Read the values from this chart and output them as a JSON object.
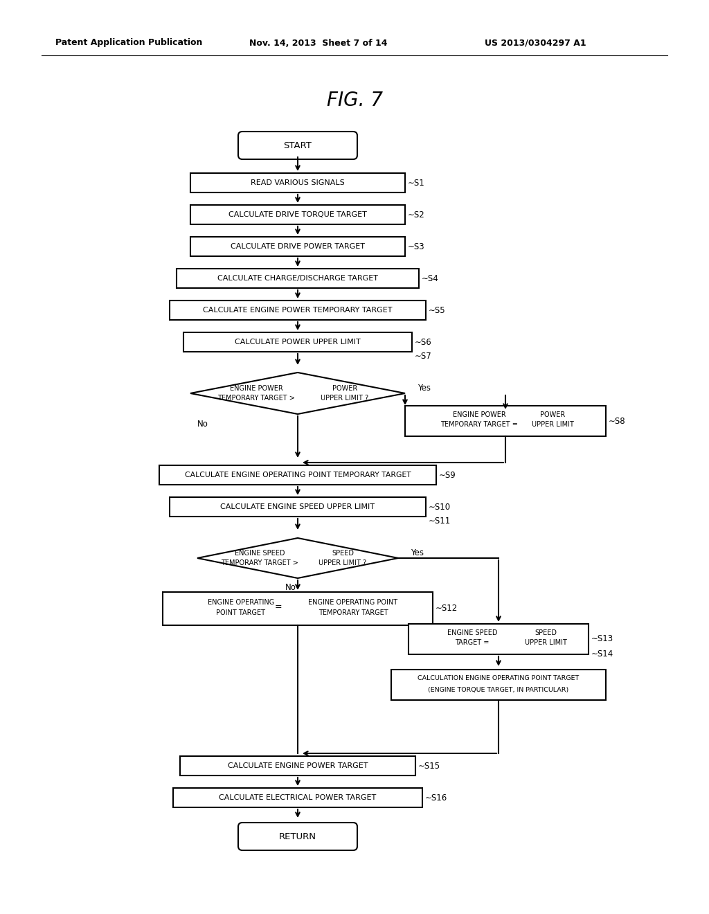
{
  "bg_color": "#ffffff",
  "header1": "Patent Application Publication",
  "header2": "Nov. 14, 2013  Sheet 7 of 14",
  "header3": "US 2013/0304297 A1",
  "fig_title": "FIG. 7",
  "line_color": "#000000",
  "box_color": "#ffffff"
}
